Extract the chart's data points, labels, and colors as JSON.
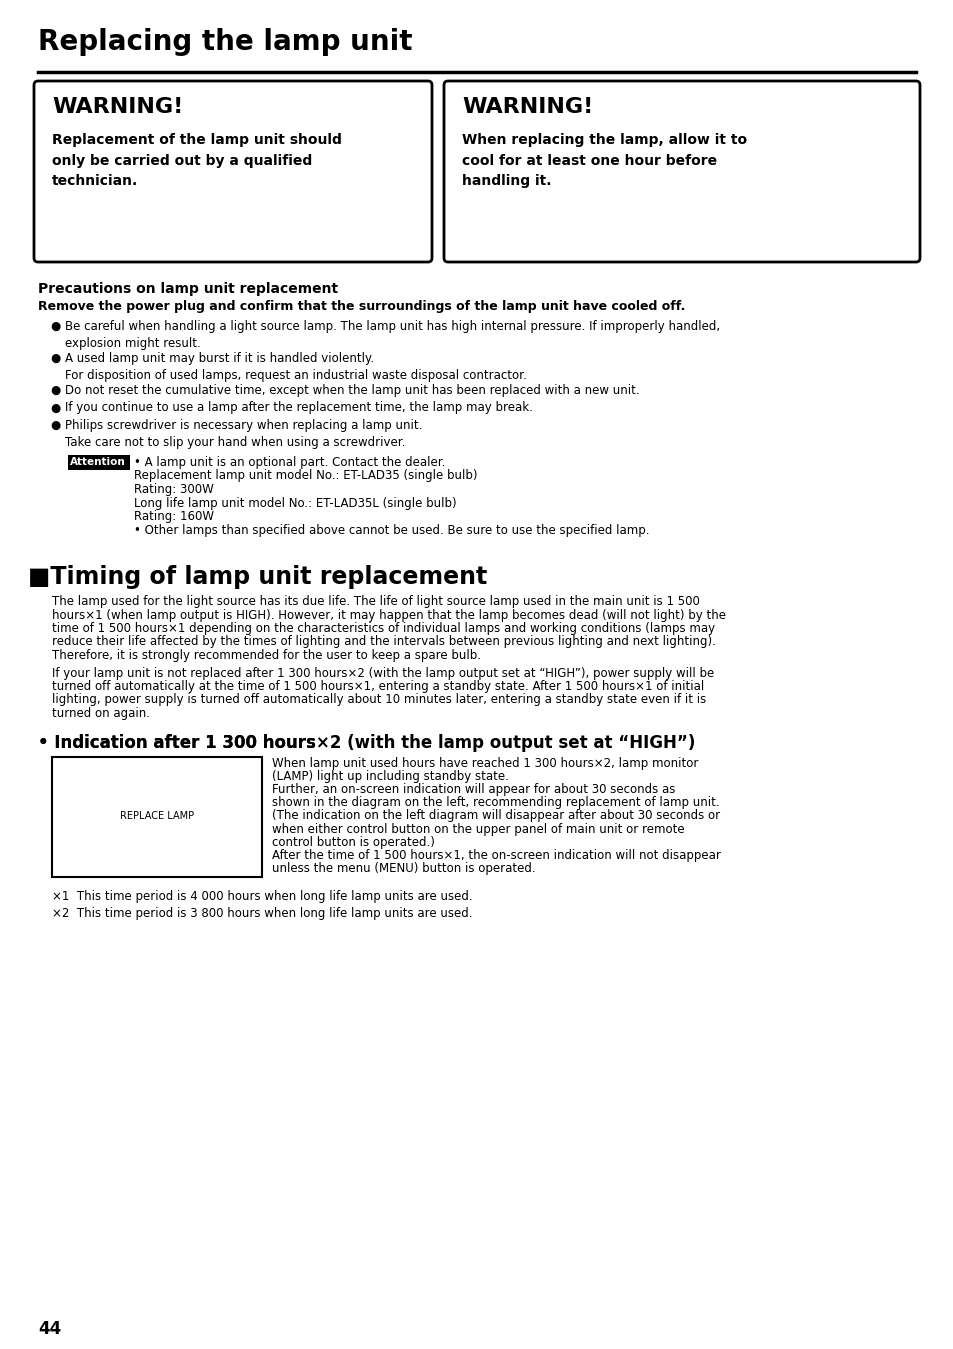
{
  "title": "Replacing the lamp unit",
  "bg_color": "#ffffff",
  "warning1_title": "WARNING!",
  "warning1_body": "Replacement of the lamp unit should\nonly be carried out by a qualified\ntechnician.",
  "warning2_title": "WARNING!",
  "warning2_body": "When replacing the lamp, allow it to\ncool for at least one hour before\nhandling it.",
  "precautions_title": "Precautions on lamp unit replacement",
  "precautions_bold": "Remove the power plug and confirm that the surroundings of the lamp unit have cooled off.",
  "bullet1": "Be careful when handling a light source lamp. The lamp unit has high internal pressure. If improperly handled,\nexplosion might result.",
  "bullet2": "A used lamp unit may burst if it is handled violently.\nFor disposition of used lamps, request an industrial waste disposal contractor.",
  "bullet3": "Do not reset the cumulative time, except when the lamp unit has been replaced with a new unit.",
  "bullet4": "If you continue to use a lamp after the replacement time, the lamp may break.",
  "bullet5": "Philips screwdriver is necessary when replacing a lamp unit.\nTake care not to slip your hand when using a screwdriver.",
  "attn_line1": "• A lamp unit is an optional part. Contact the dealer.",
  "attn_line2": "Replacement lamp unit model No.: ET-LAD35 (single bulb)",
  "attn_line3": "Rating: 300W",
  "attn_line4": "Long life lamp unit model No.: ET-LAD35L (single bulb)",
  "attn_line5": "Rating: 160W",
  "attn_line6": "• Other lamps than specified above cannot be used. Be sure to use the specified lamp.",
  "timing_title": "■Timing of lamp unit replacement",
  "timing_para1_line1": "The lamp used for the light source has its due life. The life of light source lamp used in the main unit is 1 500",
  "timing_para1_line2": "hours×1 (when lamp output is HIGH). However, it may happen that the lamp becomes dead (will not light) by the",
  "timing_para1_line3": "time of 1 500 hours×1 depending on the characteristics of individual lamps and working conditions (lamps may",
  "timing_para1_line4": "reduce their life affected by the times of lighting and the intervals between previous lighting and next lighting).",
  "timing_para1_line5": "Therefore, it is strongly recommended for the user to keep a spare bulb.",
  "timing_para2_line1": "If your lamp unit is not replaced after 1 300 hours×2 (with the lamp output set at “HIGH”), power supply will be",
  "timing_para2_line2": "turned off automatically at the time of 1 500 hours×1, entering a standby state. After 1 500 hours×1 of initial",
  "timing_para2_line3": "lighting, power supply is turned off automatically about 10 minutes later, entering a standby state even if it is",
  "timing_para2_line4": "turned on again.",
  "indication_title_normal": "• Indication after 1 300 hours",
  "indication_title_super": "×2",
  "indication_title_bold": " (with the lamp output set at “HIGH”)",
  "replace_lamp_label": "REPLACE LAMP",
  "ind_text1": "When lamp unit used hours have reached 1 300 hours×2, lamp monitor",
  "ind_text2": "(LAMP) light up including standby state.",
  "ind_text3": "Further, an on-screen indication will appear for about 30 seconds as",
  "ind_text4": "shown in the diagram on the left, recommending replacement of lamp unit.",
  "ind_text5": "(The indication on the left diagram will disappear after about 30 seconds or",
  "ind_text6": "when either control button on the upper panel of main unit or remote",
  "ind_text7": "control button is operated.)",
  "ind_text8": "After the time of 1 500 hours×1, the on-screen indication will not disappear",
  "ind_text9": "unless the menu (MENU) button is operated.",
  "footnote1": "×1  This time period is 4 000 hours when long life lamp units are used.",
  "footnote2": "×2  This time period is 3 800 hours when long life lamp units are used.",
  "page_num": "44"
}
